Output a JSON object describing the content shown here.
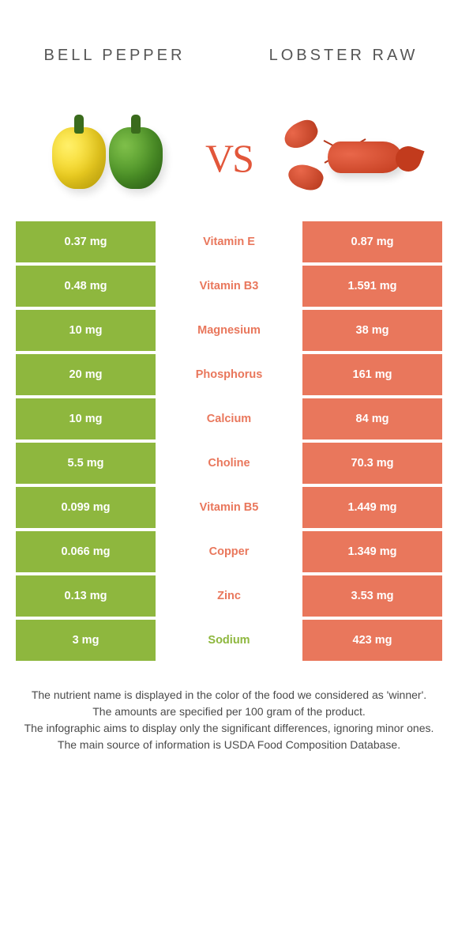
{
  "colors": {
    "left": "#8eb73e",
    "right": "#e9775c",
    "vs": "#e2563a"
  },
  "titles": {
    "left": "Bell pepper",
    "right": "Lobster Raw",
    "vs": "VS"
  },
  "rows": [
    {
      "label": "Vitamin E",
      "left": "0.37 mg",
      "right": "0.87 mg",
      "winner": "right"
    },
    {
      "label": "Vitamin B3",
      "left": "0.48 mg",
      "right": "1.591 mg",
      "winner": "right"
    },
    {
      "label": "Magnesium",
      "left": "10 mg",
      "right": "38 mg",
      "winner": "right"
    },
    {
      "label": "Phosphorus",
      "left": "20 mg",
      "right": "161 mg",
      "winner": "right"
    },
    {
      "label": "Calcium",
      "left": "10 mg",
      "right": "84 mg",
      "winner": "right"
    },
    {
      "label": "Choline",
      "left": "5.5 mg",
      "right": "70.3 mg",
      "winner": "right"
    },
    {
      "label": "Vitamin B5",
      "left": "0.099 mg",
      "right": "1.449 mg",
      "winner": "right"
    },
    {
      "label": "Copper",
      "left": "0.066 mg",
      "right": "1.349 mg",
      "winner": "right"
    },
    {
      "label": "Zinc",
      "left": "0.13 mg",
      "right": "3.53 mg",
      "winner": "right"
    },
    {
      "label": "Sodium",
      "left": "3 mg",
      "right": "423 mg",
      "winner": "left"
    }
  ],
  "footer": [
    "The nutrient name is displayed in the color of the food we considered as 'winner'.",
    "The amounts are specified per 100 gram of the product.",
    "The infographic aims to display only the significant differences, ignoring minor ones.",
    "The main source of information is USDA Food Composition Database."
  ]
}
